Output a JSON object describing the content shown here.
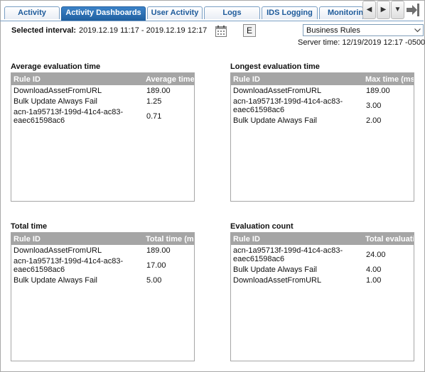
{
  "tabs": [
    {
      "label": "Activity",
      "active": false
    },
    {
      "label": "Activity Dashboards",
      "active": true
    },
    {
      "label": "User Activity",
      "active": false
    },
    {
      "label": "Logs",
      "active": false
    },
    {
      "label": "IDS Logging",
      "active": false
    },
    {
      "label": "Monitoring",
      "active": false
    }
  ],
  "nav": {
    "prev_glyph": "◀",
    "next_glyph": "▶",
    "menu_glyph": "▼"
  },
  "toolbar": {
    "selected_label": "Selected interval:",
    "selected_value": "2019.12.19 11:17 - 2019.12.19 12:17",
    "e_button": "E",
    "dropdown_value": "Business Rules",
    "server_time": "Server time: 12/19/2019 12:17 -0500"
  },
  "panels": {
    "avg": {
      "title": "Average evaluation time",
      "columns": [
        "Rule ID",
        "Average time"
      ],
      "rows": [
        [
          "DownloadAssetFromURL",
          "189.00"
        ],
        [
          "Bulk Update Always Fail",
          "1.25"
        ],
        [
          "acn-1a95713f-199d-41c4-ac83-eaec61598ac6",
          "0.71"
        ]
      ]
    },
    "longest": {
      "title": "Longest evaluation time",
      "columns": [
        "Rule ID",
        "Max time (ms)"
      ],
      "rows": [
        [
          "DownloadAssetFromURL",
          "189.00"
        ],
        [
          "acn-1a95713f-199d-41c4-ac83-eaec61598ac6",
          "3.00"
        ],
        [
          "Bulk Update Always Fail",
          "2.00"
        ]
      ]
    },
    "total": {
      "title": "Total time",
      "columns": [
        "Rule ID",
        "Total time (ms)"
      ],
      "rows": [
        [
          "DownloadAssetFromURL",
          "189.00"
        ],
        [
          "acn-1a95713f-199d-41c4-ac83-eaec61598ac6",
          "17.00"
        ],
        [
          "Bulk Update Always Fail",
          "5.00"
        ]
      ]
    },
    "count": {
      "title": "Evaluation count",
      "columns": [
        "Rule ID",
        "Total evaluations"
      ],
      "rows": [
        [
          "acn-1a95713f-199d-41c4-ac83-eaec61598ac6",
          "24.00"
        ],
        [
          "Bulk Update Always Fail",
          "4.00"
        ],
        [
          "DownloadAssetFromURL",
          "1.00"
        ]
      ]
    }
  }
}
